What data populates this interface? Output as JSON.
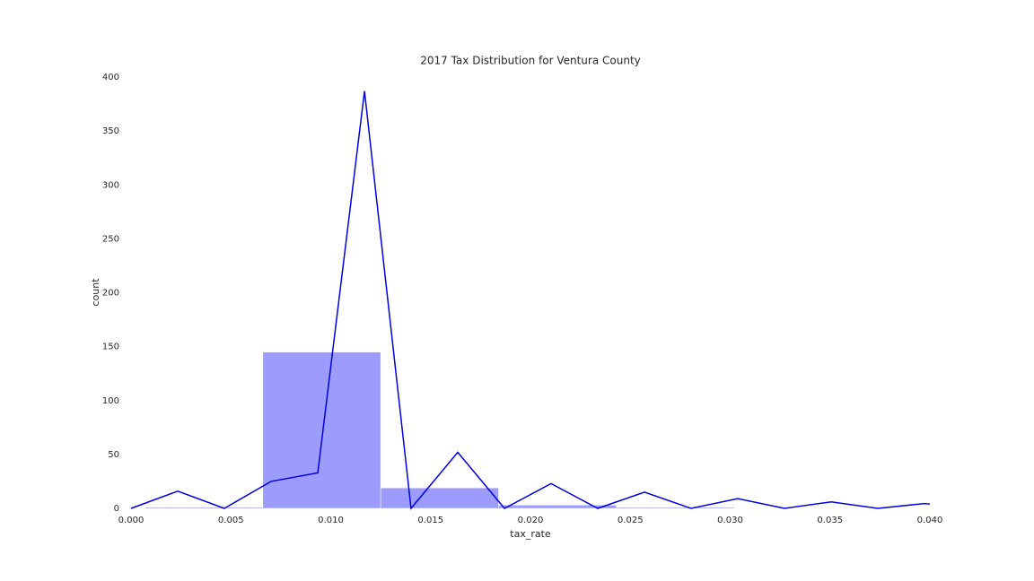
{
  "chart_data": {
    "type": "histogram",
    "title": "2017 Tax Distribution for Ventura County",
    "x_label": "tax_rate",
    "y_label": "count",
    "bins": [
      0.00072,
      0.0066,
      0.0125,
      0.0184,
      0.0243,
      0.0302
    ],
    "values": [
      1,
      145,
      19,
      3,
      1
    ],
    "color": "#9c9cfd",
    "line": {
      "color": "#0000e0",
      "x": [
        0,
        0.00234,
        0.00467,
        0.00701,
        0.00935,
        0.01169,
        0.01402,
        0.01636,
        0.0187,
        0.02103,
        0.02337,
        0.02571,
        0.02804,
        0.03038,
        0.03272,
        0.03506,
        0.03739,
        0.03973,
        0.04
      ],
      "values": [
        0,
        16,
        0,
        25,
        33,
        387,
        0,
        52,
        0,
        23,
        0,
        15,
        0,
        9,
        0,
        6,
        0,
        4.5,
        4
      ]
    },
    "xlim": [
      0,
      0.04
    ],
    "ylim": [
      0,
      400
    ],
    "xticks": [
      {
        "value": 0,
        "label": "0.000"
      },
      {
        "value": 0.005,
        "label": "0.005"
      },
      {
        "value": 0.01,
        "label": "0.010"
      },
      {
        "value": 0.015,
        "label": "0.015"
      },
      {
        "value": 0.02,
        "label": "0.020"
      },
      {
        "value": 0.025,
        "label": "0.025"
      },
      {
        "value": 0.03,
        "label": "0.030"
      },
      {
        "value": 0.035,
        "label": "0.035"
      },
      {
        "value": 0.04,
        "label": "0.040"
      }
    ],
    "yticks": [
      0,
      50,
      100,
      150,
      200,
      250,
      300,
      350,
      400
    ],
    "grid": false
  }
}
